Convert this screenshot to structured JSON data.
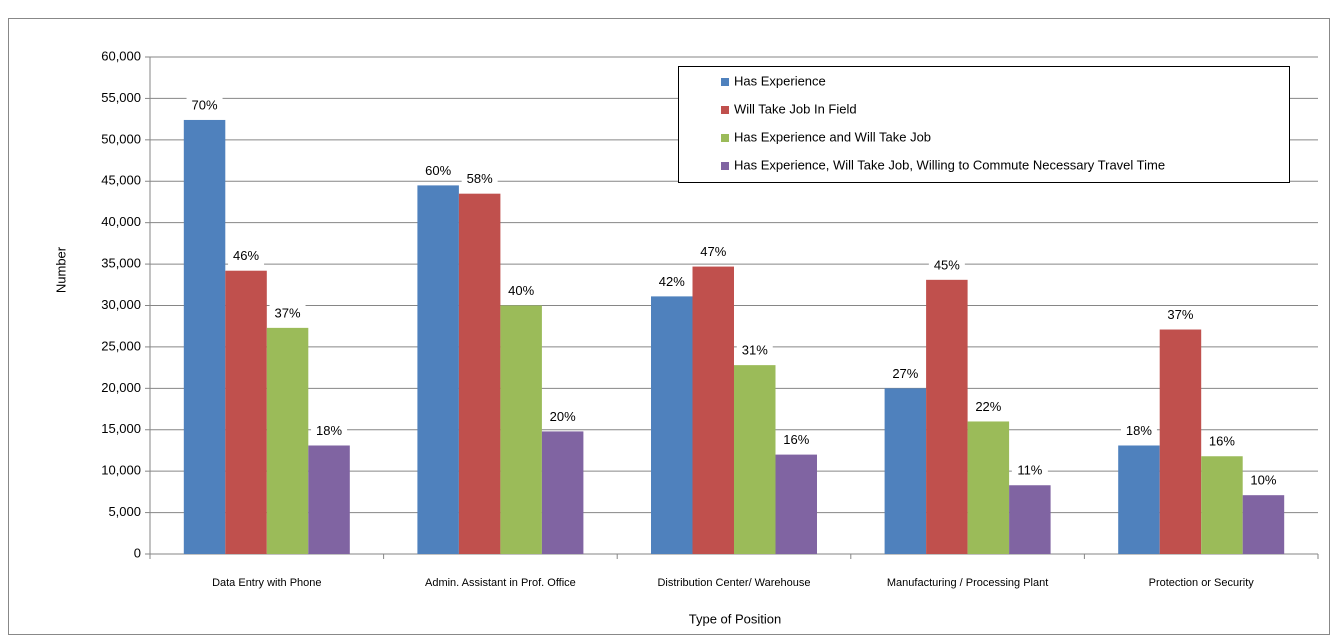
{
  "chart_data": {
    "type": "bar",
    "x_label": "Type of Position",
    "y_label": "Number",
    "categories": [
      "Data Entry with Phone",
      "Admin. Assistant in Prof. Office",
      "Distribution Center/ Warehouse",
      "Manufacturing / Processing Plant",
      "Protection or Security"
    ],
    "series": [
      {
        "name": "Has Experience",
        "color": "#4f81bd",
        "values": [
          52400,
          44500,
          31100,
          20000,
          13100
        ],
        "labels": [
          "70%",
          "60%",
          "42%",
          "27%",
          "18%"
        ]
      },
      {
        "name": "Will Take Job In Field",
        "color": "#c0504d",
        "values": [
          34200,
          43500,
          34700,
          33100,
          27100
        ],
        "labels": [
          "46%",
          "58%",
          "47%",
          "45%",
          "37%"
        ]
      },
      {
        "name": "Has Experience and Will Take Job",
        "color": "#9bbb59",
        "values": [
          27300,
          30000,
          22800,
          16000,
          11800
        ],
        "labels": [
          "37%",
          "40%",
          "31%",
          "22%",
          "16%"
        ]
      },
      {
        "name": "Has Experience, Will Take Job, Willing to Commute  Necessary Travel Time",
        "color": "#8064a2",
        "values": [
          13100,
          14800,
          12000,
          8300,
          7100
        ],
        "labels": [
          "18%",
          "20%",
          "16%",
          "11%",
          "10%"
        ]
      }
    ],
    "ylim": [
      0,
      60000
    ],
    "yticks": [
      0,
      {
        "value": 5000,
        "label": "5,000"
      },
      {
        "value": 10000,
        "label": "10,000"
      },
      {
        "value": 15000,
        "label": "15,000"
      },
      {
        "value": 20000,
        "label": "20,000"
      },
      {
        "value": 25000,
        "label": "25,000"
      },
      {
        "value": 30000,
        "label": "30,000"
      },
      {
        "value": 35000,
        "label": "35,000"
      },
      {
        "value": 40000,
        "label": "40,000"
      },
      {
        "value": 45000,
        "label": "45,000"
      },
      {
        "value": 50000,
        "label": "50,000"
      },
      {
        "value": 55000,
        "label": "55,000"
      },
      {
        "value": 60000,
        "label": "60,000"
      }
    ],
    "grid": true,
    "legend": "top-right"
  }
}
